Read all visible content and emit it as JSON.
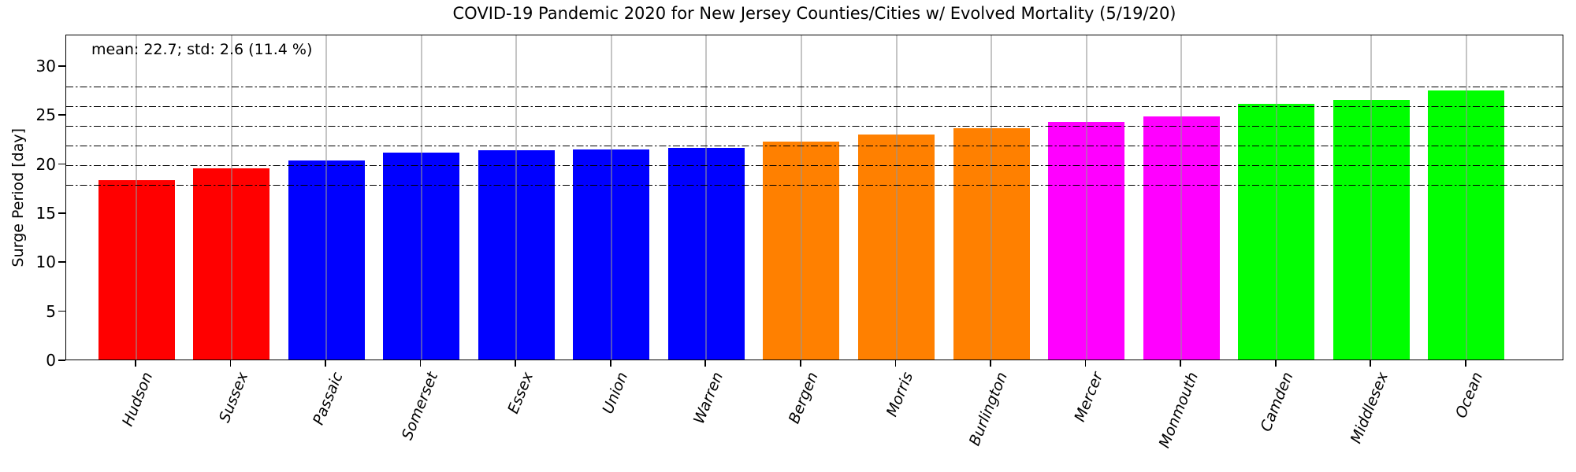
{
  "figure": {
    "title": "COVID-19 Pandemic 2020 for New Jersey Counties/Cities w/ Evolved Mortality (5/19/20)",
    "ylabel": "Surge Period [day]",
    "annotation": "mean: 22.7; std: 2.6 (11.4 %)"
  },
  "chart_data": {
    "type": "bar",
    "title": "COVID-19 Pandemic 2020 for New Jersey Counties/Cities w/ Evolved Mortality (5/19/20)",
    "xlabel": "",
    "ylabel": "Surge Period [day]",
    "annotation": "mean: 22.7; std: 2.6 (11.4 %)",
    "stats": {
      "mean": 22.7,
      "std": 2.6,
      "std_pct": 11.4
    },
    "categories": [
      "Hudson",
      "Sussex",
      "Passaic",
      "Somerset",
      "Essex",
      "Union",
      "Warren",
      "Bergen",
      "Morris",
      "Burlington",
      "Mercer",
      "Monmouth",
      "Camden",
      "Middlesex",
      "Ocean"
    ],
    "values": [
      18.3,
      19.5,
      20.3,
      21.1,
      21.3,
      21.4,
      21.6,
      22.2,
      22.9,
      23.6,
      24.2,
      24.8,
      26.1,
      26.5,
      27.4
    ],
    "bar_colors": [
      "#ff0000",
      "#ff0000",
      "#0000ff",
      "#0000ff",
      "#0000ff",
      "#0000ff",
      "#0000ff",
      "#ff8000",
      "#ff8000",
      "#ff8000",
      "#ff00ff",
      "#ff00ff",
      "#00ff00",
      "#00ff00",
      "#00ff00"
    ],
    "yticks": [
      0,
      5,
      10,
      15,
      20,
      25,
      30
    ],
    "ylim": [
      0,
      33.2
    ],
    "hlines": {
      "values": [
        18,
        20,
        22,
        24,
        26,
        28
      ],
      "style": "dash-dot",
      "color": "#000000"
    },
    "grid": {
      "vertical": true,
      "horizontal": false,
      "color": "#b0b0b0",
      "over_bars": true
    },
    "legend": null,
    "x_tick_label_style": {
      "italic": true,
      "rotation_deg": 68
    }
  }
}
